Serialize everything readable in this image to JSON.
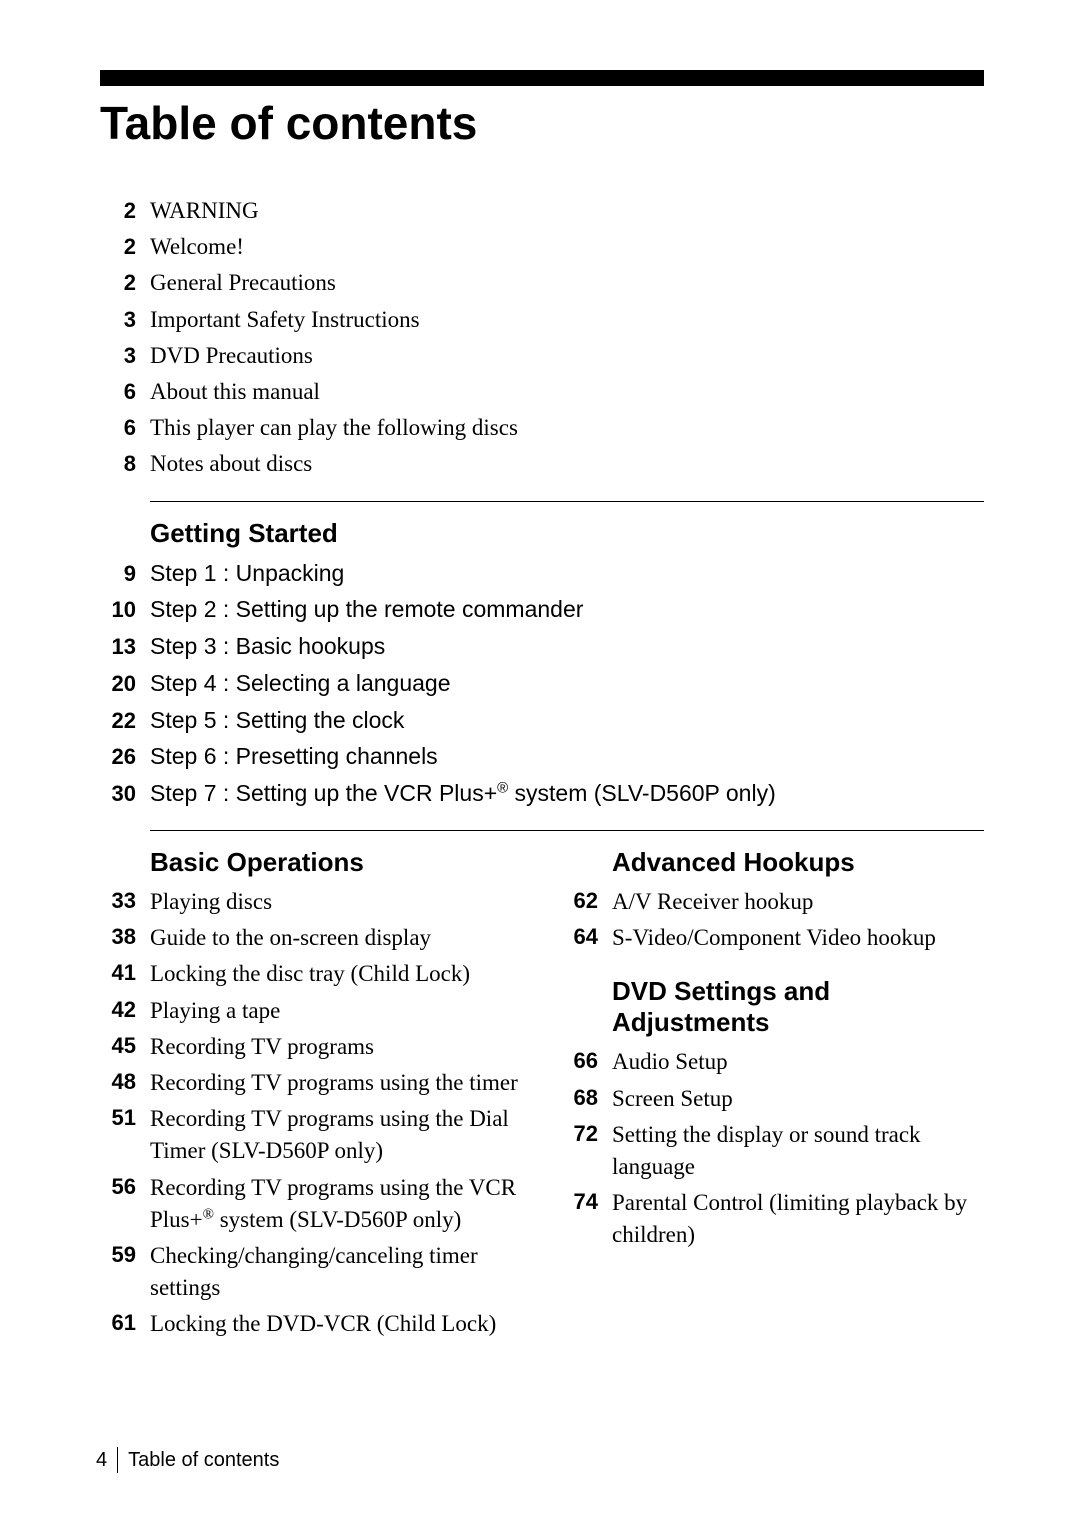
{
  "title": "Table of contents",
  "intro": [
    {
      "page": "2",
      "title": "WARNING",
      "sans": false
    },
    {
      "page": "2",
      "title": "Welcome!",
      "sans": false
    },
    {
      "page": "2",
      "title": "General Precautions",
      "sans": false
    },
    {
      "page": "3",
      "title": "Important Safety Instructions",
      "sans": false
    },
    {
      "page": "3",
      "title": "DVD Precautions",
      "sans": false
    },
    {
      "page": "6",
      "title": "About this manual",
      "sans": false
    },
    {
      "page": "6",
      "title": "This player can play the following discs",
      "sans": false
    },
    {
      "page": "8",
      "title": "Notes about discs",
      "sans": false
    }
  ],
  "getting_started": {
    "heading": "Getting Started",
    "items": [
      {
        "page": "9",
        "title": "Step 1 : Unpacking"
      },
      {
        "page": "10",
        "title": "Step 2 : Setting up the remote commander"
      },
      {
        "page": "13",
        "title": "Step 3 : Basic hookups"
      },
      {
        "page": "20",
        "title": "Step 4 : Selecting a language"
      },
      {
        "page": "22",
        "title": "Step 5 : Setting the clock"
      },
      {
        "page": "26",
        "title": "Step 6 : Presetting channels"
      },
      {
        "page": "30",
        "title": "Step 7 : Setting up the VCR Plus+® system (SLV-D560P only)",
        "sup": true
      }
    ]
  },
  "basic_operations": {
    "heading": "Basic Operations",
    "items": [
      {
        "page": "33",
        "title": "Playing discs"
      },
      {
        "page": "38",
        "title": "Guide to the on-screen display"
      },
      {
        "page": "41",
        "title": "Locking the disc tray (Child Lock)"
      },
      {
        "page": "42",
        "title": "Playing a tape"
      },
      {
        "page": "45",
        "title": "Recording TV programs"
      },
      {
        "page": "48",
        "title": "Recording TV programs using the timer"
      },
      {
        "page": "51",
        "title": "Recording TV programs using the Dial Timer (SLV-D560P only)"
      },
      {
        "page": "56",
        "title": "Recording TV programs using the VCR Plus+® system (SLV-D560P only)",
        "sup": true
      },
      {
        "page": "59",
        "title": "Checking/changing/canceling timer settings"
      },
      {
        "page": "61",
        "title": "Locking the DVD-VCR (Child Lock)"
      }
    ]
  },
  "advanced_hookups": {
    "heading": "Advanced Hookups",
    "items": [
      {
        "page": "62",
        "title": "A/V Receiver hookup"
      },
      {
        "page": "64",
        "title": "S-Video/Component Video hookup"
      }
    ]
  },
  "dvd_settings": {
    "heading": "DVD Settings and Adjustments",
    "items": [
      {
        "page": "66",
        "title": "Audio Setup"
      },
      {
        "page": "68",
        "title": "Screen Setup"
      },
      {
        "page": "72",
        "title": "Setting the display or sound track language"
      },
      {
        "page": "74",
        "title": "Parental Control (limiting playback by children)"
      }
    ]
  },
  "footer": {
    "page": "4",
    "label": "Table of contents"
  }
}
